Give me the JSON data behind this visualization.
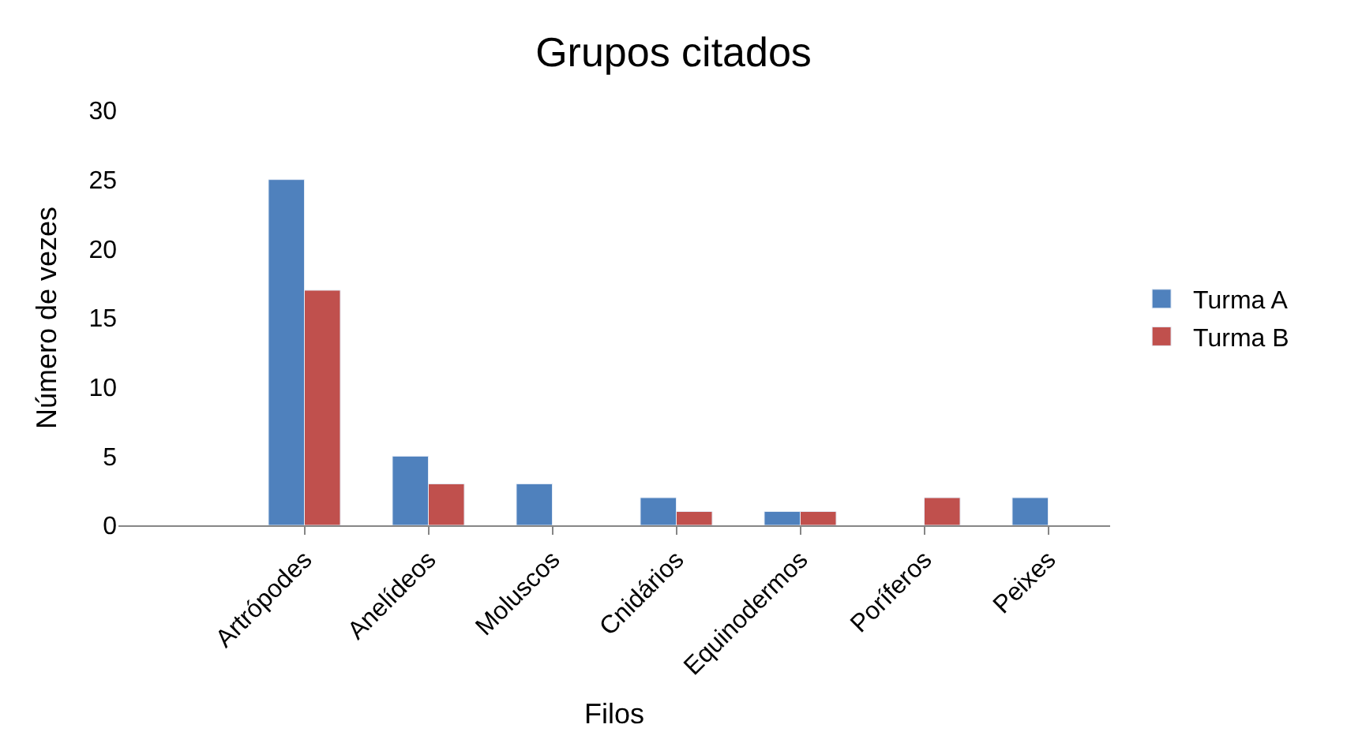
{
  "chart_data": {
    "type": "bar",
    "title": "Grupos citados",
    "xlabel": "Filos",
    "ylabel": "Número de vezes",
    "categories": [
      null,
      "Artrópodes",
      "Anelídeos",
      "Moluscos",
      "Cnidários",
      "Equinodermos",
      "Poríferos",
      "Peixes"
    ],
    "series": [
      {
        "name": "Turma A",
        "color": "#4f81bd",
        "values": [
          null,
          25,
          5,
          3,
          2,
          1,
          null,
          2
        ]
      },
      {
        "name": "Turma B",
        "color": "#c0504d",
        "values": [
          null,
          17,
          3,
          null,
          1,
          1,
          2,
          null
        ]
      }
    ],
    "ylim": [
      0,
      30
    ],
    "yticks": [
      0,
      5,
      10,
      15,
      20,
      25,
      30
    ],
    "grid": false,
    "legend": "right"
  }
}
